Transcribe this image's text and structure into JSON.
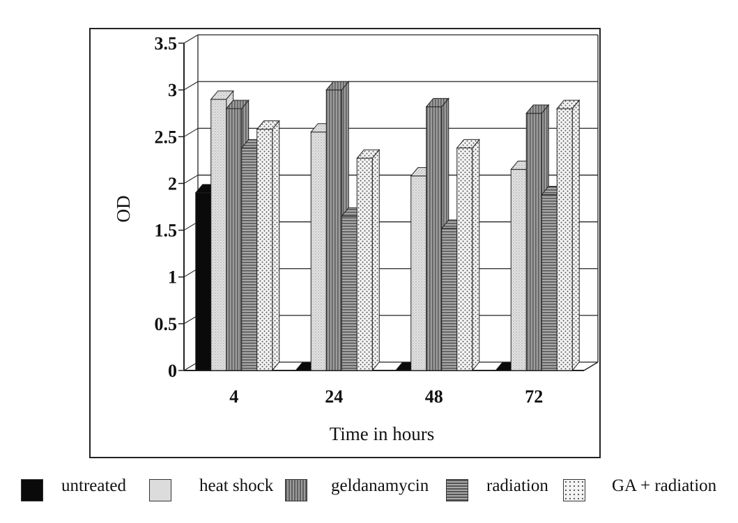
{
  "chart_data": {
    "type": "bar",
    "xlabel": "Time in hours",
    "ylabel": "OD",
    "ylim": [
      0,
      3.5
    ],
    "yticks": [
      "0",
      "0.5",
      "1",
      "1.5",
      "2",
      "2.5",
      "3",
      "3.5"
    ],
    "categories": [
      "4",
      "24",
      "48",
      "72"
    ],
    "grid": true,
    "legend_position": "bottom",
    "series": [
      {
        "name": "untreated",
        "values": [
          1.9,
          0,
          0,
          0
        ],
        "fill": "#0a0a0a",
        "pattern": "solid"
      },
      {
        "name": "heat shock",
        "values": [
          2.9,
          2.55,
          2.08,
          2.15
        ],
        "fill": "#dcdcdc",
        "pattern": "stipple"
      },
      {
        "name": "geldanamycin",
        "values": [
          2.8,
          3.0,
          2.82,
          2.75
        ],
        "fill": "#8a8a8a",
        "pattern": "vertical-lines"
      },
      {
        "name": "radiation",
        "values": [
          2.38,
          1.65,
          1.52,
          1.88
        ],
        "fill": "#9a9a9a",
        "pattern": "horizontal-lines"
      },
      {
        "name": "GA + radiation",
        "values": [
          2.58,
          2.27,
          2.38,
          2.8
        ],
        "fill": "#f0f0f0",
        "pattern": "dots"
      }
    ]
  }
}
